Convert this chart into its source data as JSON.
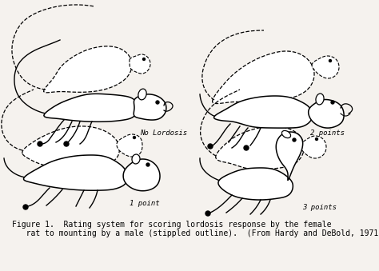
{
  "bg_color": "#f5f2ee",
  "fig_caption_line1": "Figure 1.  Rating system for scoring lordosis response by the female",
  "fig_caption_line2": "   rat to mounting by a male (stippled outline).  (From Hardy and DeBold, 1971).",
  "label_tl": "No Lordosis",
  "label_tr": "2 points",
  "label_bl": "1 point",
  "label_br": "3 points",
  "caption_fontsize": 7.0,
  "label_fontsize": 6.5
}
